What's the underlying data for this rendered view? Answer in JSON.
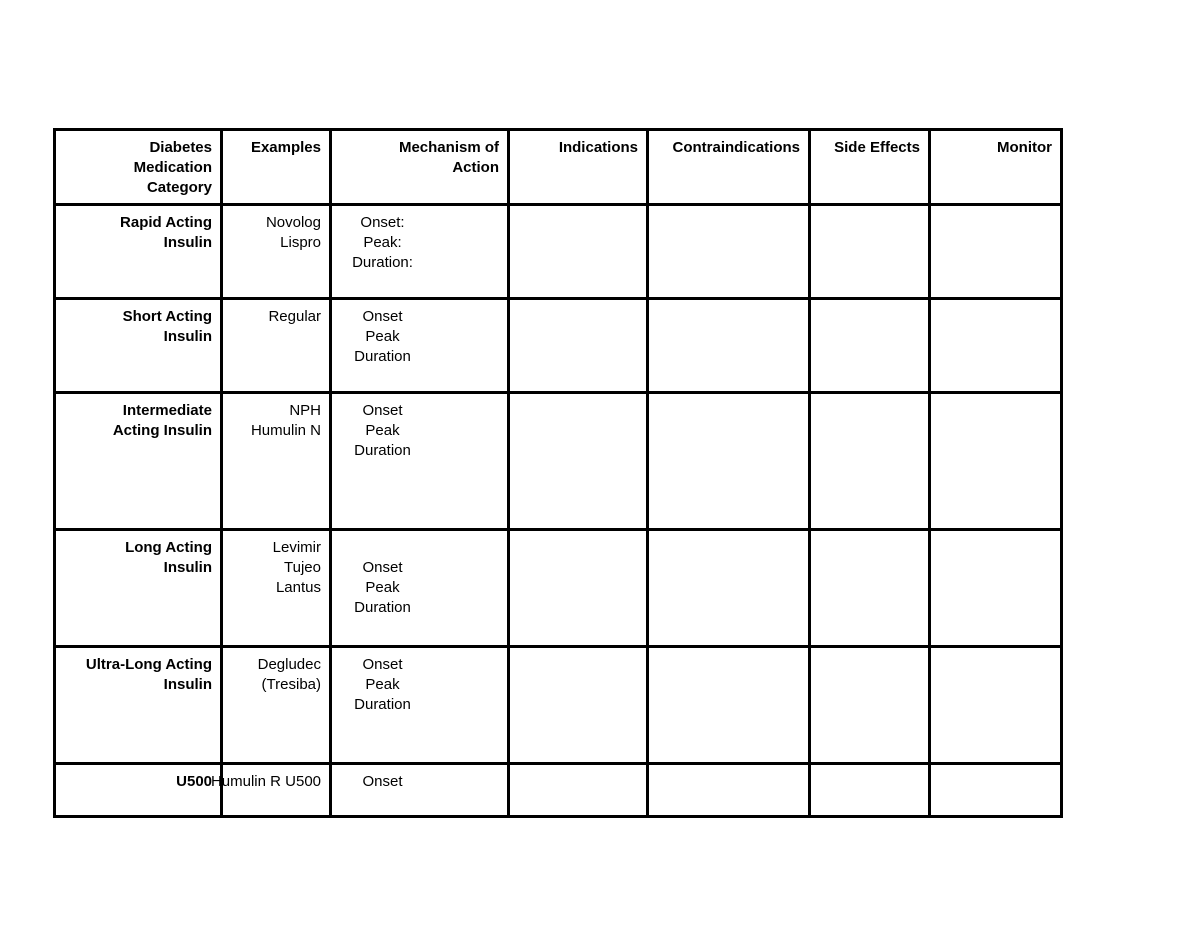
{
  "table": {
    "colors": {
      "border": "#000000",
      "text": "#000000",
      "background": "#ffffff"
    },
    "header": {
      "category": "Diabetes\nMedication\nCategory",
      "examples": "Examples",
      "mechanism": "Mechanism of\nAction",
      "indications": "Indications",
      "contraindications": "Contraindications",
      "side_effects": "Side Effects",
      "monitor": "Monitor"
    },
    "rows": [
      {
        "category": "Rapid Acting\nInsulin",
        "examples": "Novolog\nLispro",
        "mechanism": "Onset:\nPeak:\nDuration:",
        "indications": "",
        "contraindications": "",
        "side_effects": "",
        "monitor": ""
      },
      {
        "category": "Short Acting\nInsulin",
        "examples": "Regular",
        "mechanism": "Onset\nPeak\nDuration",
        "indications": "",
        "contraindications": "",
        "side_effects": "",
        "monitor": ""
      },
      {
        "category": "Intermediate\nActing Insulin",
        "examples": "NPH\nHumulin N",
        "mechanism": "Onset\nPeak\nDuration",
        "indications": "",
        "contraindications": "",
        "side_effects": "",
        "monitor": ""
      },
      {
        "category": "Long Acting\nInsulin",
        "examples": "Levimir\nTujeo\nLantus",
        "mechanism": "\nOnset\nPeak\nDuration",
        "indications": "",
        "contraindications": "",
        "side_effects": "",
        "monitor": ""
      },
      {
        "category": "Ultra-Long Acting\nInsulin",
        "examples": "Degludec\n(Tresiba)",
        "mechanism": "Onset\nPeak\nDuration",
        "indications": "",
        "contraindications": "",
        "side_effects": "",
        "monitor": ""
      },
      {
        "category": "U500",
        "examples": "Humulin R U500",
        "mechanism": "Onset",
        "indications": "",
        "contraindications": "",
        "side_effects": "",
        "monitor": ""
      }
    ]
  }
}
